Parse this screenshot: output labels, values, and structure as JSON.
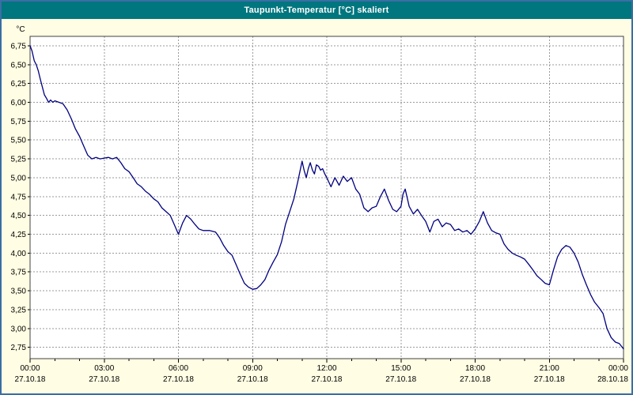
{
  "window": {
    "title": "Taupunkt-Temperatur [°C] skaliert"
  },
  "colors": {
    "background": "#FFFDE3",
    "titlebar_bg": "#00767E",
    "titlebar_text": "#FFFFFF",
    "frame_border": "#3A6EA5",
    "plot_bg": "#FFFFFF",
    "plot_border": "#404040",
    "grid": "#9A9A9A",
    "line": "#000080"
  },
  "chart_data": {
    "type": "line",
    "title": "Taupunkt-Temperatur [°C] skaliert",
    "ylabel": "°C",
    "ylim": [
      2.75,
      6.75
    ],
    "y_tick_step": 0.25,
    "decimal_separator": ",",
    "y_tick_labels": [
      "6,75",
      "6,50",
      "6,25",
      "6,00",
      "5,75",
      "5,50",
      "5,25",
      "5,00",
      "4,75",
      "4,50",
      "4,25",
      "4,00",
      "3,75",
      "3,50",
      "3,25",
      "3,00",
      "2,75"
    ],
    "x_range_hours": [
      0,
      24
    ],
    "x_major_step_hours": 3,
    "x_minor_step_hours": 1,
    "x_tick_labels": [
      "00:00",
      "03:00",
      "06:00",
      "09:00",
      "12:00",
      "15:00",
      "18:00",
      "21:00",
      "00:00"
    ],
    "x_date_labels": [
      "27.10.18",
      "27.10.18",
      "27.10.18",
      "27.10.18",
      "27.10.18",
      "27.10.18",
      "27.10.18",
      "27.10.18",
      "28.10.18"
    ],
    "grid": true,
    "legend": "none",
    "series": [
      {
        "name": "Taupunkt-Temperatur",
        "color": "#000080",
        "points": [
          [
            0.0,
            6.75
          ],
          [
            0.08,
            6.68
          ],
          [
            0.17,
            6.55
          ],
          [
            0.25,
            6.5
          ],
          [
            0.33,
            6.42
          ],
          [
            0.42,
            6.3
          ],
          [
            0.5,
            6.2
          ],
          [
            0.58,
            6.1
          ],
          [
            0.67,
            6.05
          ],
          [
            0.75,
            6.0
          ],
          [
            0.83,
            6.03
          ],
          [
            0.92,
            6.0
          ],
          [
            1.0,
            6.02
          ],
          [
            1.17,
            6.0
          ],
          [
            1.33,
            5.98
          ],
          [
            1.5,
            5.9
          ],
          [
            1.67,
            5.78
          ],
          [
            1.83,
            5.65
          ],
          [
            2.0,
            5.55
          ],
          [
            2.17,
            5.42
          ],
          [
            2.33,
            5.3
          ],
          [
            2.5,
            5.25
          ],
          [
            2.67,
            5.27
          ],
          [
            2.83,
            5.25
          ],
          [
            3.0,
            5.26
          ],
          [
            3.17,
            5.27
          ],
          [
            3.33,
            5.25
          ],
          [
            3.5,
            5.27
          ],
          [
            3.67,
            5.2
          ],
          [
            3.83,
            5.12
          ],
          [
            4.0,
            5.08
          ],
          [
            4.17,
            5.0
          ],
          [
            4.33,
            4.92
          ],
          [
            4.5,
            4.88
          ],
          [
            4.67,
            4.82
          ],
          [
            4.83,
            4.78
          ],
          [
            5.0,
            4.72
          ],
          [
            5.17,
            4.68
          ],
          [
            5.33,
            4.6
          ],
          [
            5.5,
            4.55
          ],
          [
            5.67,
            4.5
          ],
          [
            5.83,
            4.38
          ],
          [
            6.0,
            4.25
          ],
          [
            6.17,
            4.4
          ],
          [
            6.33,
            4.5
          ],
          [
            6.5,
            4.45
          ],
          [
            6.67,
            4.38
          ],
          [
            6.83,
            4.32
          ],
          [
            7.0,
            4.3
          ],
          [
            7.25,
            4.3
          ],
          [
            7.5,
            4.28
          ],
          [
            7.67,
            4.2
          ],
          [
            7.83,
            4.1
          ],
          [
            8.0,
            4.02
          ],
          [
            8.17,
            3.97
          ],
          [
            8.33,
            3.85
          ],
          [
            8.5,
            3.72
          ],
          [
            8.67,
            3.6
          ],
          [
            8.83,
            3.55
          ],
          [
            9.0,
            3.52
          ],
          [
            9.17,
            3.53
          ],
          [
            9.33,
            3.58
          ],
          [
            9.5,
            3.65
          ],
          [
            9.67,
            3.78
          ],
          [
            9.83,
            3.88
          ],
          [
            10.0,
            3.98
          ],
          [
            10.17,
            4.15
          ],
          [
            10.33,
            4.38
          ],
          [
            10.5,
            4.55
          ],
          [
            10.67,
            4.72
          ],
          [
            10.83,
            4.95
          ],
          [
            11.0,
            5.22
          ],
          [
            11.08,
            5.1
          ],
          [
            11.17,
            5.0
          ],
          [
            11.25,
            5.12
          ],
          [
            11.33,
            5.2
          ],
          [
            11.42,
            5.1
          ],
          [
            11.5,
            5.05
          ],
          [
            11.58,
            5.17
          ],
          [
            11.67,
            5.15
          ],
          [
            11.75,
            5.1
          ],
          [
            11.83,
            5.12
          ],
          [
            11.92,
            5.05
          ],
          [
            12.0,
            5.0
          ],
          [
            12.17,
            4.88
          ],
          [
            12.33,
            5.0
          ],
          [
            12.5,
            4.9
          ],
          [
            12.67,
            5.02
          ],
          [
            12.83,
            4.95
          ],
          [
            13.0,
            5.0
          ],
          [
            13.17,
            4.85
          ],
          [
            13.33,
            4.78
          ],
          [
            13.5,
            4.6
          ],
          [
            13.67,
            4.55
          ],
          [
            13.83,
            4.6
          ],
          [
            14.0,
            4.62
          ],
          [
            14.17,
            4.75
          ],
          [
            14.33,
            4.85
          ],
          [
            14.5,
            4.7
          ],
          [
            14.67,
            4.58
          ],
          [
            14.83,
            4.55
          ],
          [
            15.0,
            4.62
          ],
          [
            15.08,
            4.78
          ],
          [
            15.17,
            4.85
          ],
          [
            15.33,
            4.62
          ],
          [
            15.5,
            4.52
          ],
          [
            15.67,
            4.58
          ],
          [
            15.83,
            4.5
          ],
          [
            16.0,
            4.42
          ],
          [
            16.17,
            4.28
          ],
          [
            16.33,
            4.42
          ],
          [
            16.5,
            4.45
          ],
          [
            16.67,
            4.35
          ],
          [
            16.83,
            4.4
          ],
          [
            17.0,
            4.38
          ],
          [
            17.17,
            4.3
          ],
          [
            17.33,
            4.32
          ],
          [
            17.5,
            4.28
          ],
          [
            17.67,
            4.3
          ],
          [
            17.83,
            4.25
          ],
          [
            18.0,
            4.32
          ],
          [
            18.17,
            4.42
          ],
          [
            18.33,
            4.55
          ],
          [
            18.5,
            4.4
          ],
          [
            18.67,
            4.3
          ],
          [
            18.83,
            4.27
          ],
          [
            19.0,
            4.25
          ],
          [
            19.17,
            4.12
          ],
          [
            19.33,
            4.05
          ],
          [
            19.5,
            4.0
          ],
          [
            19.67,
            3.97
          ],
          [
            19.83,
            3.95
          ],
          [
            20.0,
            3.92
          ],
          [
            20.17,
            3.85
          ],
          [
            20.33,
            3.78
          ],
          [
            20.5,
            3.7
          ],
          [
            20.67,
            3.65
          ],
          [
            20.83,
            3.6
          ],
          [
            21.0,
            3.58
          ],
          [
            21.17,
            3.78
          ],
          [
            21.33,
            3.95
          ],
          [
            21.5,
            4.05
          ],
          [
            21.67,
            4.1
          ],
          [
            21.83,
            4.08
          ],
          [
            22.0,
            4.0
          ],
          [
            22.17,
            3.88
          ],
          [
            22.33,
            3.72
          ],
          [
            22.5,
            3.58
          ],
          [
            22.67,
            3.45
          ],
          [
            22.83,
            3.35
          ],
          [
            23.0,
            3.28
          ],
          [
            23.17,
            3.2
          ],
          [
            23.33,
            3.0
          ],
          [
            23.5,
            2.88
          ],
          [
            23.67,
            2.82
          ],
          [
            23.83,
            2.8
          ],
          [
            24.0,
            2.73
          ]
        ]
      }
    ]
  }
}
